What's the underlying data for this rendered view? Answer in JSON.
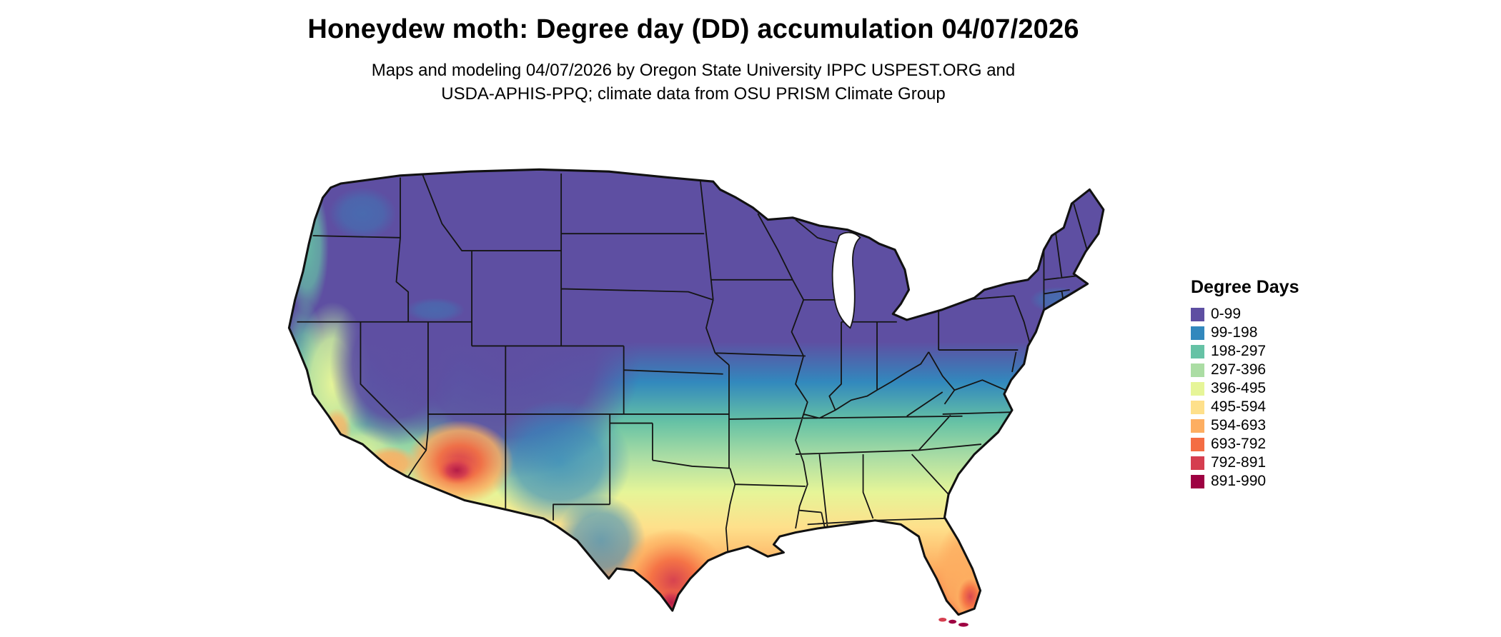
{
  "title": "Honeydew moth: Degree day (DD) accumulation 04/07/2026",
  "subtitle": {
    "line1": "Maps and modeling 04/07/2026 by Oregon State University IPPC USPEST.ORG and",
    "line2": "USDA-APHIS-PPQ; climate data from OSU PRISM Climate Group"
  },
  "map": {
    "name": "Continental United States degree-day accumulation map"
  },
  "legend": {
    "title": "Degree Days",
    "entries": [
      {
        "label": "0-99",
        "color": "#5e4fa2"
      },
      {
        "label": "99-198",
        "color": "#3288bd"
      },
      {
        "label": "198-297",
        "color": "#66c2a5"
      },
      {
        "label": "297-396",
        "color": "#abdda4"
      },
      {
        "label": "396-495",
        "color": "#e6f598"
      },
      {
        "label": "495-594",
        "color": "#fee08b"
      },
      {
        "label": "594-693",
        "color": "#fdae61"
      },
      {
        "label": "693-792",
        "color": "#f46d43"
      },
      {
        "label": "792-891",
        "color": "#d53e4f"
      },
      {
        "label": "891-990",
        "color": "#9e0142"
      }
    ]
  }
}
